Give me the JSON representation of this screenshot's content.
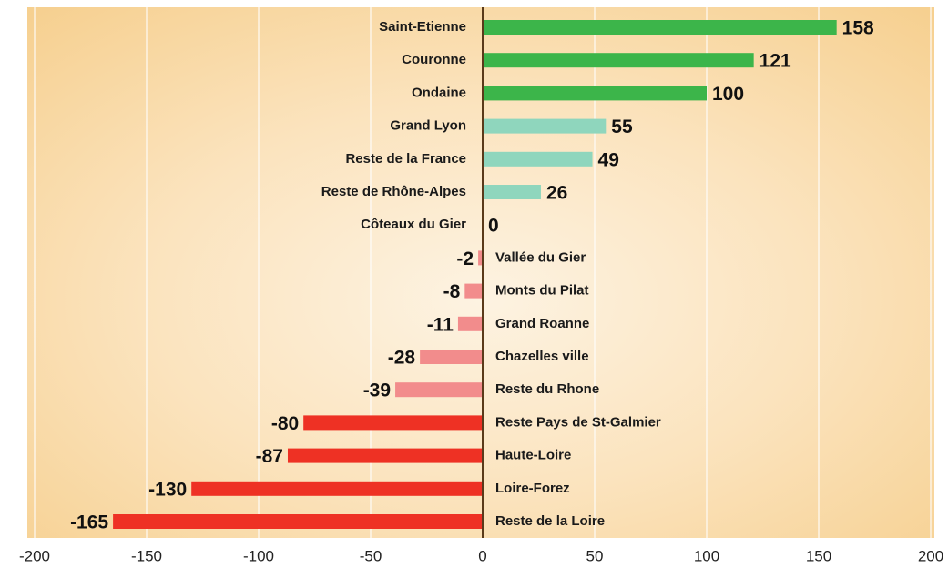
{
  "chart_data": {
    "type": "bar",
    "orientation": "horizontal",
    "categories": [
      "Saint-Etienne",
      "Couronne",
      "Ondaine",
      "Grand Lyon",
      "Reste de la France",
      "Reste de Rhône-Alpes",
      "Côteaux du Gier",
      "Vallée du Gier",
      "Monts du Pilat",
      "Grand Roanne",
      "Chazelles ville",
      "Reste du Rhone",
      "Reste Pays de St-Galmier",
      "Haute-Loire",
      "Loire-Forez",
      "Reste de la Loire"
    ],
    "values": [
      158,
      121,
      100,
      55,
      49,
      26,
      0,
      -2,
      -8,
      -11,
      -28,
      -39,
      -80,
      -87,
      -130,
      -165
    ],
    "colors": [
      "#3cb54a",
      "#3cb54a",
      "#3cb54a",
      "#8fd6bd",
      "#8fd6bd",
      "#8fd6bd",
      "#8fd6bd",
      "#f28c8c",
      "#f28c8c",
      "#f28c8c",
      "#f28c8c",
      "#f28c8c",
      "#ee3124",
      "#ee3124",
      "#ee3124",
      "#ee3124"
    ],
    "xlim": [
      -200,
      200
    ],
    "xticks": [
      -200,
      -150,
      -100,
      -50,
      0,
      50,
      100,
      150,
      200
    ],
    "grid": true
  }
}
